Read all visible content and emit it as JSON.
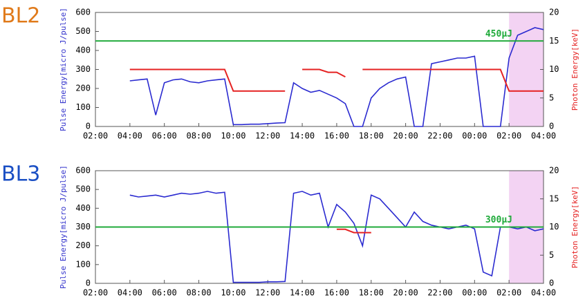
{
  "chart_data": [
    {
      "type": "line",
      "title": "BL2",
      "title_color": "#e07a1a",
      "y_label": "Pulse Energy[micro J/pulse]",
      "y2_label": "Photon Energy[keV]",
      "xlim": [
        0,
        26
      ],
      "ylim": [
        0,
        600
      ],
      "y2lim": [
        0,
        20
      ],
      "xticks": [
        {
          "value": 0,
          "label": "02:00"
        },
        {
          "value": 2,
          "label": "04:00"
        },
        {
          "value": 4,
          "label": "06:00"
        },
        {
          "value": 6,
          "label": "08:00"
        },
        {
          "value": 8,
          "label": "10:00"
        },
        {
          "value": 10,
          "label": "12:00"
        },
        {
          "value": 12,
          "label": "14:00"
        },
        {
          "value": 14,
          "label": "16:00"
        },
        {
          "value": 16,
          "label": "18:00"
        },
        {
          "value": 18,
          "label": "20:00"
        },
        {
          "value": 20,
          "label": "22:00"
        },
        {
          "value": 22,
          "label": "00:00"
        },
        {
          "value": 24,
          "label": "02:00"
        },
        {
          "value": 26,
          "label": "04:00"
        }
      ],
      "yticks": [
        0,
        100,
        200,
        300,
        400,
        500,
        600
      ],
      "y2ticks": [
        0,
        5,
        10,
        15,
        20
      ],
      "reference_line": {
        "value": 450,
        "label": "450μJ",
        "color": "#1faa3a"
      },
      "highlight": {
        "range": [
          24,
          26
        ],
        "color": "#f3d3f3"
      },
      "x": [
        0,
        0.5,
        1,
        1.5,
        2,
        2.5,
        3,
        3.5,
        4,
        4.5,
        5,
        5.5,
        6,
        6.5,
        7,
        7.5,
        8,
        8.5,
        9,
        9.5,
        10,
        10.5,
        11,
        11.5,
        12,
        12.5,
        13,
        13.5,
        14,
        14.5,
        15,
        15.5,
        16,
        16.5,
        17,
        17.5,
        18,
        18.5,
        19,
        19.5,
        20,
        20.5,
        21,
        21.5,
        22,
        22.5,
        23,
        23.5,
        24,
        24.5,
        25,
        25.5,
        26
      ],
      "series": [
        {
          "name": "Pulse Energy",
          "color": "#2a2ad0",
          "values": [
            null,
            null,
            null,
            null,
            240,
            245,
            250,
            60,
            230,
            245,
            250,
            235,
            230,
            240,
            245,
            250,
            10,
            10,
            12,
            12,
            15,
            18,
            20,
            230,
            200,
            180,
            190,
            170,
            150,
            120,
            0,
            0,
            150,
            200,
            230,
            250,
            260,
            0,
            0,
            330,
            340,
            350,
            360,
            360,
            370,
            0,
            0,
            0,
            360,
            480,
            500,
            520,
            510
          ]
        },
        {
          "name": "Photon Energy",
          "color": "#e52222",
          "axis": "y2",
          "values": [
            null,
            null,
            null,
            null,
            10,
            10,
            10,
            10,
            10,
            10,
            10,
            10,
            10,
            10,
            10,
            10,
            6.2,
            6.2,
            6.2,
            6.2,
            6.2,
            6.2,
            6.2,
            null,
            10,
            10,
            10,
            9.5,
            9.5,
            8.7,
            null,
            10,
            10,
            10,
            10,
            10,
            10,
            10,
            10,
            10,
            10,
            10,
            10,
            10,
            10,
            10,
            10,
            10,
            6.2,
            6.2,
            6.2,
            6.2,
            6.2
          ]
        }
      ]
    },
    {
      "type": "line",
      "title": "BL3",
      "title_color": "#1a4fc4",
      "y_label": "Pulse Energy[micro J/pulse]",
      "y2_label": "Photon Energy[keV]",
      "xlim": [
        0,
        26
      ],
      "ylim": [
        0,
        600
      ],
      "y2lim": [
        0,
        20
      ],
      "xticks": [
        {
          "value": 0,
          "label": "02:00"
        },
        {
          "value": 2,
          "label": "04:00"
        },
        {
          "value": 4,
          "label": "06:00"
        },
        {
          "value": 6,
          "label": "08:00"
        },
        {
          "value": 8,
          "label": "10:00"
        },
        {
          "value": 10,
          "label": "12:00"
        },
        {
          "value": 12,
          "label": "14:00"
        },
        {
          "value": 14,
          "label": "16:00"
        },
        {
          "value": 16,
          "label": "18:00"
        },
        {
          "value": 18,
          "label": "20:00"
        },
        {
          "value": 20,
          "label": "22:00"
        },
        {
          "value": 22,
          "label": "00:00"
        },
        {
          "value": 24,
          "label": "02:00"
        },
        {
          "value": 26,
          "label": "04:00"
        }
      ],
      "yticks": [
        0,
        100,
        200,
        300,
        400,
        500,
        600
      ],
      "y2ticks": [
        0,
        5,
        10,
        15,
        20
      ],
      "reference_line": {
        "value": 300,
        "label": "300μJ",
        "color": "#1faa3a"
      },
      "highlight": {
        "range": [
          24,
          26
        ],
        "color": "#f3d3f3"
      },
      "x": [
        0,
        0.5,
        1,
        1.5,
        2,
        2.5,
        3,
        3.5,
        4,
        4.5,
        5,
        5.5,
        6,
        6.5,
        7,
        7.5,
        8,
        8.5,
        9,
        9.5,
        10,
        10.5,
        11,
        11.5,
        12,
        12.5,
        13,
        13.5,
        14,
        14.5,
        15,
        15.5,
        16,
        16.5,
        17,
        17.5,
        18,
        18.5,
        19,
        19.5,
        20,
        20.5,
        21,
        21.5,
        22,
        22.5,
        23,
        23.5,
        24,
        24.5,
        25,
        25.5,
        26
      ],
      "series": [
        {
          "name": "Pulse Energy",
          "color": "#2a2ad0",
          "values": [
            null,
            null,
            null,
            null,
            470,
            460,
            465,
            470,
            460,
            470,
            480,
            475,
            480,
            490,
            480,
            485,
            5,
            5,
            5,
            5,
            8,
            8,
            10,
            480,
            490,
            470,
            480,
            300,
            420,
            380,
            320,
            200,
            470,
            450,
            400,
            350,
            300,
            380,
            330,
            310,
            300,
            290,
            300,
            310,
            290,
            60,
            40,
            300,
            300,
            290,
            300,
            280,
            290
          ]
        },
        {
          "name": "Photon Energy",
          "color": "#e52222",
          "axis": "y2",
          "values": [
            null,
            null,
            null,
            null,
            null,
            null,
            null,
            null,
            null,
            null,
            null,
            null,
            null,
            null,
            null,
            null,
            null,
            null,
            null,
            null,
            null,
            null,
            null,
            null,
            null,
            null,
            null,
            null,
            9.6,
            9.6,
            9.0,
            9.0,
            9.0,
            null,
            null,
            null,
            null,
            null,
            null,
            null,
            null,
            null,
            null,
            null,
            null,
            null,
            null,
            null,
            null,
            null,
            null,
            null,
            null
          ]
        }
      ]
    }
  ]
}
